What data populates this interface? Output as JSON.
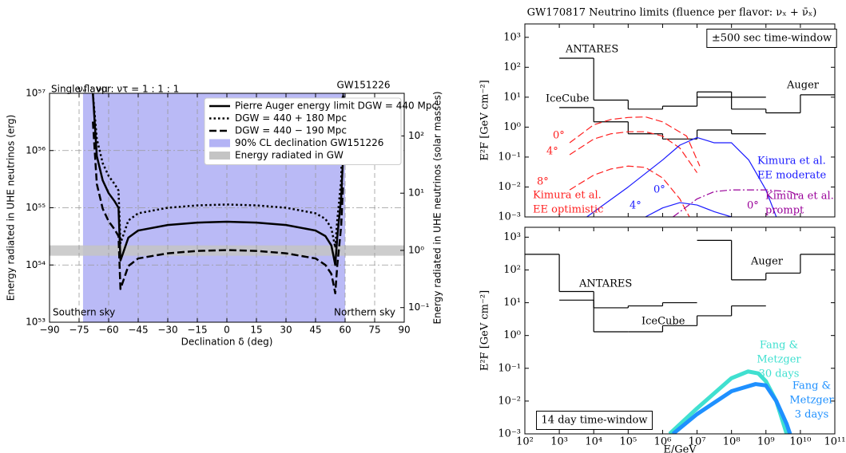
{
  "chart_data": [
    {
      "type": "line",
      "xlabel": "Declination δ (deg)",
      "ylabel": "Energy radiated in UHE neutrinos (erg)",
      "y2label": "Energy radiated in UHE neutrinos (solar masses)",
      "xlim": [
        -90,
        90
      ],
      "xticks": [
        {
          "value": -90,
          "label": "−90"
        },
        {
          "value": -75,
          "label": "−75"
        },
        {
          "value": -60,
          "label": "−60"
        },
        {
          "value": -45,
          "label": "−45"
        },
        {
          "value": -30,
          "label": "−30"
        },
        {
          "value": -15,
          "label": "−15"
        },
        0,
        15,
        30,
        45,
        60,
        75,
        90
      ],
      "ylim": [
        1e+53,
        1e+57
      ],
      "yscale": "log",
      "yticks": [
        {
          "value": 1e+53,
          "label": "10⁵³"
        },
        {
          "value": 1e+54,
          "label": "10⁵⁴"
        },
        {
          "value": 1e+55,
          "label": "10⁵⁵"
        },
        {
          "value": 1e+56,
          "label": "10⁵⁶"
        },
        {
          "value": 1e+57,
          "label": "10⁵⁷"
        }
      ],
      "y2lim": [
        0.0556,
        556
      ],
      "y2scale": "log",
      "y2ticks": [
        {
          "value": 0.1,
          "label": "10⁻¹"
        },
        {
          "value": 1,
          "label": "10⁰"
        },
        {
          "value": 10,
          "label": "10¹"
        },
        {
          "value": 100,
          "label": "10²"
        }
      ],
      "grid": true,
      "legend": "upper right",
      "x": [
        -68,
        -66,
        -63,
        -60,
        -57,
        -55,
        -54,
        -53,
        -50,
        -45,
        -30,
        -15,
        0,
        15,
        30,
        45,
        50,
        53,
        54,
        55,
        56,
        58,
        59
      ],
      "series": [
        {
          "name": "Pierre Auger energy limit DGW = 440 Mpc",
          "color": "#000000",
          "dash": "solid",
          "linewidth": 2.5,
          "values": [
            1e+57,
            8e+55,
            3e+55,
            1.8e+55,
            1.3e+55,
            1e+55,
            1.2e+54,
            1.5e+54,
            3e+54,
            4e+54,
            5e+54,
            5.5e+54,
            5.7e+54,
            5.5e+54,
            5e+54,
            4e+54,
            3.2e+54,
            2.2e+54,
            1.5e+54,
            1e+54,
            3e+54,
            1.5e+55,
            8e+55
          ]
        },
        {
          "name": "DGW = 440 + 180 Mpc",
          "color": "#000000",
          "dash": "dotted",
          "linewidth": 2.5,
          "values": [
            1e+57,
            1.6e+56,
            6e+55,
            3.6e+55,
            2.6e+55,
            2e+55,
            2.4e+54,
            3e+54,
            6e+54,
            8e+54,
            1e+55,
            1.1e+55,
            1.14e+55,
            1.1e+55,
            1e+55,
            8e+54,
            6.4e+54,
            4.4e+54,
            3e+54,
            2e+54,
            6e+54,
            3e+55,
            1e+57
          ]
        },
        {
          "name": "DGW = 440 − 190 Mpc",
          "color": "#000000",
          "dash": "dashed",
          "linewidth": 2.5,
          "values": [
            3.2e+56,
            2.6e+55,
            9.6e+54,
            5.8e+54,
            4.2e+54,
            3.2e+54,
            3.8e+53,
            4.8e+53,
            9.6e+53,
            1.3e+54,
            1.6e+54,
            1.76e+54,
            1.82e+54,
            1.76e+54,
            1.6e+54,
            1.3e+54,
            1e+54,
            7e+53,
            4.8e+53,
            3.2e+53,
            9.6e+53,
            4.8e+54,
            2.6e+55
          ]
        }
      ],
      "bands": [
        {
          "name": "90% CL declination GW151226",
          "color": "#b3b3f5",
          "x": [
            -73,
            60
          ]
        },
        {
          "name": "Energy radiated in GW",
          "color": "#c4c4c4",
          "y": [
            1.45e+54,
            2.2e+54
          ]
        }
      ],
      "annotations": [
        {
          "text": "Single flavor"
        },
        {
          "text": "νₑ : νμ : ντ = 1 : 1 : 1"
        },
        {
          "text": "GW151226"
        },
        {
          "text": "Southern sky"
        },
        {
          "text": "Northern sky"
        }
      ]
    },
    {
      "type": "line",
      "title": "GW170817 Neutrino limits (fluence per flavor: νₓ + ν̄ₓ)",
      "ylabel": "E²F  [GeV cm⁻²]",
      "xlim": [
        100,
        100000000000.0
      ],
      "xscale": "log",
      "ylim": [
        0.001,
        2800
      ],
      "yscale": "log",
      "yticks": [
        {
          "value": 0.001,
          "label": "10⁻³"
        },
        {
          "value": 0.01,
          "label": "10⁻²"
        },
        {
          "value": 0.1,
          "label": "10⁻¹"
        },
        {
          "value": 1,
          "label": "10⁰"
        },
        {
          "value": 10,
          "label": "10¹"
        },
        {
          "value": 100,
          "label": "10²"
        },
        {
          "value": 1000,
          "label": "10³"
        }
      ],
      "series": [
        {
          "name": "ANTARES",
          "color": "#000000",
          "step": true,
          "bins": [
            1000,
            10000,
            100000,
            1000000,
            10000000,
            100000000,
            1000000000
          ],
          "values": [
            200,
            8,
            4,
            5,
            15,
            10
          ]
        },
        {
          "name": "IceCube",
          "color": "#000000",
          "step": true,
          "bins": [
            1000,
            10000,
            100000,
            1000000,
            10000000,
            100000000,
            1000000000
          ],
          "values": [
            4.5,
            1.5,
            0.6,
            0.4,
            0.8,
            0.6
          ]
        },
        {
          "name": "Auger",
          "color": "#000000",
          "step": true,
          "bins": [
            10000000,
            100000000,
            1000000000,
            10000000000,
            100000000000
          ],
          "values": [
            10,
            4,
            3,
            12
          ]
        },
        {
          "name": "0°",
          "color": "#ff2020",
          "dash": "dashed",
          "x": [
            2000,
            10000,
            31623,
            100000,
            316228,
            1000000,
            5000000,
            12000000
          ],
          "values": [
            0.3,
            1.2,
            1.8,
            2.1,
            2.2,
            1.5,
            0.5,
            0.05
          ]
        },
        {
          "name": "4°",
          "color": "#ff2020",
          "dash": "dashed",
          "x": [
            2000,
            10000,
            31623,
            100000,
            316228,
            1000000,
            3162278,
            10000000
          ],
          "values": [
            0.12,
            0.4,
            0.6,
            0.7,
            0.7,
            0.5,
            0.2,
            0.03
          ]
        },
        {
          "name": "8°",
          "color": "#ff2020",
          "dash": "dashed",
          "x": [
            2000,
            10000,
            31623,
            100000,
            316228,
            1000000,
            3162278,
            6000000
          ],
          "values": [
            0.008,
            0.025,
            0.04,
            0.05,
            0.045,
            0.02,
            0.004,
            0.001
          ]
        },
        {
          "name": "0°",
          "color": "#1a1aff",
          "dash": "solid",
          "x": [
            6310,
            100000,
            1000000,
            3162278,
            10000000,
            31622777,
            100000000,
            316227766,
            1000000000,
            2000000000
          ],
          "values": [
            0.001,
            0.01,
            0.08,
            0.25,
            0.45,
            0.3,
            0.3,
            0.08,
            0.008,
            0.001
          ]
        },
        {
          "name": "4°",
          "color": "#1a1aff",
          "dash": "solid",
          "x": [
            316228,
            1000000,
            3162278,
            10000000,
            31622777,
            100000000
          ],
          "values": [
            0.001,
            0.002,
            0.003,
            0.0025,
            0.0015,
            0.001
          ]
        },
        {
          "name": "0°",
          "color": "#990099",
          "dash": "dashdot",
          "x": [
            2000000,
            10000000,
            31622777,
            100000000,
            1000000000,
            5000000000,
            10000000000
          ],
          "values": [
            0.001,
            0.004,
            0.007,
            0.008,
            0.008,
            0.007,
            0.005
          ]
        }
      ],
      "annotations": [
        {
          "text": "±500 sec time-window",
          "box": true
        },
        {
          "lines": [
            "Kimura et al.",
            "EE moderate"
          ],
          "color": "#1a1aff"
        },
        {
          "lines": [
            "Kimura et al.",
            "EE optimistic"
          ],
          "color": "#ff2020"
        },
        {
          "lines": [
            "Kimura et al.",
            "prompt"
          ],
          "color": "#990099"
        }
      ]
    },
    {
      "type": "line",
      "xlabel": "E/GeV",
      "ylabel": "E²F  [GeV cm⁻²]",
      "xlim": [
        100,
        100000000000.0
      ],
      "xscale": "log",
      "ylim": [
        0.001,
        2000
      ],
      "yscale": "log",
      "xticks": [
        {
          "value": 100,
          "label": "10²"
        },
        {
          "value": 1000,
          "label": "10³"
        },
        {
          "value": 10000,
          "label": "10⁴"
        },
        {
          "value": 100000,
          "label": "10⁵"
        },
        {
          "value": 1000000,
          "label": "10⁶"
        },
        {
          "value": 10000000,
          "label": "10⁷"
        },
        {
          "value": 100000000,
          "label": "10⁸"
        },
        {
          "value": 1000000000,
          "label": "10⁹"
        },
        {
          "value": 10000000000,
          "label": "10¹⁰"
        },
        {
          "value": 100000000000,
          "label": "10¹¹"
        }
      ],
      "yticks": [
        {
          "value": 0.001,
          "label": "10⁻³"
        },
        {
          "value": 0.01,
          "label": "10⁻²"
        },
        {
          "value": 0.1,
          "label": "10⁻¹"
        },
        {
          "value": 1,
          "label": "10⁰"
        },
        {
          "value": 10,
          "label": "10¹"
        },
        {
          "value": 100,
          "label": "10²"
        },
        {
          "value": 1000,
          "label": "10³"
        }
      ],
      "series": [
        {
          "name": "Auger",
          "color": "#000000",
          "step": true,
          "bins": [
            10000000,
            100000000,
            1000000000,
            10000000000,
            100000000000
          ],
          "values": [
            800,
            50,
            80,
            300
          ]
        },
        {
          "name": "ANTARES",
          "color": "#000000",
          "step": true,
          "bins": [
            100,
            1000,
            10000,
            100000,
            1000000,
            10000000
          ],
          "values": [
            300,
            22,
            7,
            8,
            10
          ]
        },
        {
          "name": "IceCube",
          "color": "#000000",
          "step": true,
          "bins": [
            1000,
            10000,
            100000,
            1000000,
            10000000,
            100000000,
            1000000000
          ],
          "values": [
            12,
            1.3,
            1.3,
            2,
            4,
            8
          ]
        },
        {
          "color": "#40e0d0",
          "dash": "solid",
          "linewidth": 5,
          "x": [
            1600000,
            10000000,
            100000000,
            300000000,
            600000000,
            1000000000,
            2000000000,
            4000000000
          ],
          "values": [
            0.001,
            0.006,
            0.05,
            0.08,
            0.07,
            0.04,
            0.01,
            0.001
          ]
        },
        {
          "color": "#1e90ff",
          "dash": "solid",
          "linewidth": 5,
          "x": [
            2000000,
            10000000,
            100000000,
            500000000,
            1000000000,
            2000000000,
            4000000000,
            5000000000
          ],
          "values": [
            0.001,
            0.004,
            0.02,
            0.033,
            0.03,
            0.01,
            0.002,
            0.001
          ]
        }
      ],
      "annotations": [
        {
          "lines": [
            "Fang &",
            "Metzger",
            "30 days"
          ],
          "color": "#40e0d0"
        },
        {
          "lines": [
            "Fang &",
            "Metzger",
            "3 days"
          ],
          "color": "#1e90ff"
        },
        {
          "text": "14 day time-window",
          "box": true
        }
      ]
    }
  ]
}
